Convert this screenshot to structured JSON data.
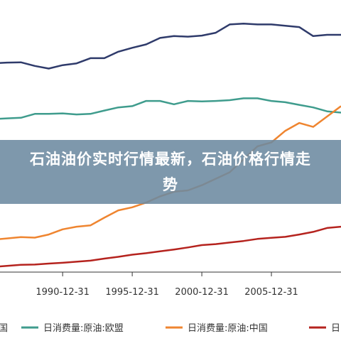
{
  "overlay": {
    "title": "石油油价实时行情最新，石油价格行情走势"
  },
  "chart_data": {
    "type": "line",
    "title": "",
    "xlabel": "",
    "ylabel": "",
    "x": [
      1985,
      1986,
      1987,
      1988,
      1989,
      1990,
      1991,
      1992,
      1993,
      1994,
      1995,
      1996,
      1997,
      1998,
      1999,
      2000,
      2001,
      2002,
      2003,
      2004,
      2005,
      2006,
      2007,
      2008,
      2009,
      2010
    ],
    "x_ticks": [
      "1990-12-31",
      "1995-12-31",
      "2000-12-31",
      "2005-12-31"
    ],
    "x_tick_positions": [
      1990,
      1995,
      2000,
      2005
    ],
    "xlim": [
      1985.5,
      2010
    ],
    "ylim": [
      0,
      100
    ],
    "grid": false,
    "legend_position": "bottom",
    "series": [
      {
        "name": "日消费量:原油:美国",
        "color": "#2f3b6b",
        "values": [
          80.5,
          80.8,
          80.9,
          79.5,
          78.5,
          79.8,
          80.5,
          82.5,
          82.5,
          85,
          86.5,
          87.8,
          90.3,
          91,
          90.8,
          91.2,
          92.3,
          95.5,
          95.8,
          95.5,
          95.5,
          95,
          94.5,
          91,
          91.5,
          91.5
        ]
      },
      {
        "name": "日消费量:原油:欧盟",
        "color": "#3f9c8d",
        "values": [
          59,
          59.3,
          59.5,
          61,
          61,
          61.2,
          60.8,
          61,
          62.3,
          63.5,
          64,
          66,
          66,
          64.7,
          66,
          65.8,
          66,
          66.3,
          67,
          67,
          66,
          65.5,
          64.5,
          63.5,
          62,
          61.5
        ]
      },
      {
        "name": "日消费量:原油:中国",
        "color": "#ef8530",
        "values": [
          12.5,
          13,
          13.5,
          13.3,
          14.5,
          16.5,
          17.5,
          18,
          21,
          23.8,
          25,
          26.8,
          29.2,
          31,
          31.5,
          33.5,
          36,
          38.5,
          43.5,
          48.5,
          50,
          54.5,
          57.5,
          56,
          60,
          64
        ]
      },
      {
        "name": "日",
        "color": "#b5231e",
        "values": [
          2,
          2.4,
          2.8,
          2.9,
          3.3,
          3.6,
          4,
          4.4,
          5.2,
          5.9,
          6.7,
          7.3,
          8,
          8.7,
          9.5,
          10.4,
          10.8,
          11.4,
          12,
          12.8,
          13.2,
          13.6,
          14.5,
          15.5,
          17,
          17.5
        ]
      }
    ],
    "series_visible": [
      {
        "name": "日消费量:原油:美国",
        "values": [
          80.5,
          80.8,
          79.8,
          78.5,
          79.8,
          80.5,
          82.5,
          82.5,
          85,
          86.5,
          87.8,
          90.3,
          91,
          90.8,
          91.2,
          92.3,
          95.5,
          95.8,
          95.5,
          95.5,
          95.5
        ]
      }
    ]
  },
  "legend": {
    "items": [
      {
        "label": "国",
        "color": "#2f3b6b"
      },
      {
        "label": "日消费量:原油:欧盟",
        "color": "#3f9c8d"
      },
      {
        "label": "日消费量:原油:中国",
        "color": "#ef8530"
      },
      {
        "label": "日",
        "color": "#b5231e"
      }
    ]
  }
}
